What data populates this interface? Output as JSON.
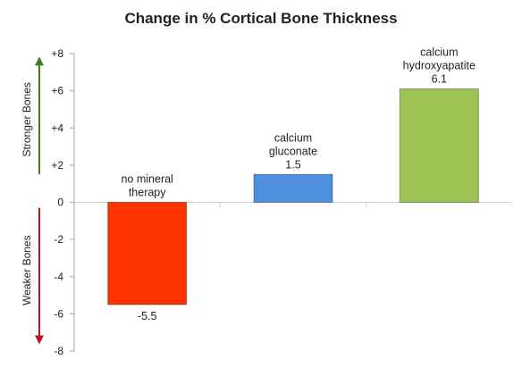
{
  "chart_data": {
    "type": "bar",
    "title": "Change in % Cortical Bone Thickness",
    "categories": [
      [
        "no mineral",
        "therapy"
      ],
      [
        "calcium",
        "gluconate"
      ],
      [
        "calcium",
        "hydroxyapatite"
      ]
    ],
    "values": [
      -5.5,
      1.5,
      6.1
    ],
    "value_labels": [
      "-5.5",
      "1.5",
      "6.1"
    ],
    "bar_colors": [
      "#ff3300",
      "#4f8fe0",
      "#9bc453"
    ],
    "ylim": [
      -8,
      8
    ],
    "yticks": [
      8,
      6,
      4,
      2,
      0,
      -2,
      -4,
      -6,
      -8
    ],
    "ytick_labels": [
      "+8",
      "+6",
      "+4",
      "+2",
      "0",
      "-2",
      "-4",
      "-6",
      "-8"
    ],
    "grid": false,
    "side_labels": {
      "positive": "Stronger Bones",
      "negative": "Weaker Bones",
      "positive_color": "#3f7f24",
      "negative_color": "#c0141e"
    }
  }
}
